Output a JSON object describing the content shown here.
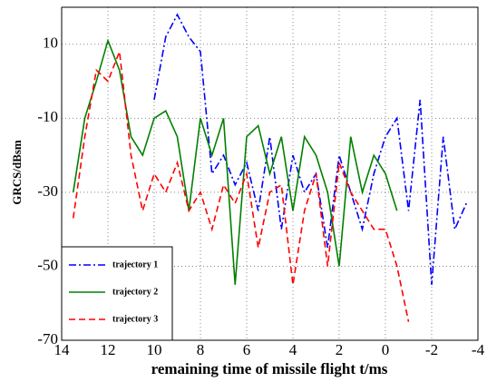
{
  "chart_data": {
    "type": "line",
    "x_label": "remaining time of missile flight t/ms",
    "y_label": "GRCS/dBsm",
    "x": [
      13.5,
      13,
      12.5,
      12,
      11.5,
      11,
      10.5,
      10,
      9.5,
      9,
      8.5,
      8,
      7.5,
      7,
      6.5,
      6,
      5.5,
      5,
      4.5,
      4,
      3.5,
      3,
      2.5,
      2,
      1.5,
      1,
      0.5,
      0,
      -0.5,
      -1,
      -1.5,
      -2,
      -2.5,
      -3,
      -3.5
    ],
    "series": [
      {
        "name": "trajectory 1",
        "color": "#0000ff",
        "style": "dashdot",
        "values": [
          null,
          null,
          null,
          null,
          null,
          null,
          null,
          -5,
          12,
          18,
          12,
          8,
          -25,
          -20,
          -28,
          -22,
          -35,
          -15,
          -40,
          -20,
          -30,
          -25,
          -45,
          -20,
          -30,
          -40,
          -25,
          -15,
          -10,
          -35,
          -5,
          -55,
          -15,
          -40,
          -33
        ]
      },
      {
        "name": "trajectory 2",
        "color": "#008000",
        "style": "solid",
        "values": [
          -30,
          -10,
          0,
          11,
          3,
          -15,
          -20,
          -10,
          -8,
          -15,
          -35,
          -10,
          -20,
          -10,
          -55,
          -15,
          -12,
          -25,
          -15,
          -35,
          -15,
          -20,
          -30,
          -50,
          -15,
          -30,
          -20,
          -25,
          -35,
          null,
          null,
          null,
          null,
          null,
          null
        ]
      },
      {
        "name": "trajectory 3",
        "color": "#ff0000",
        "style": "dashed",
        "values": [
          -37,
          -15,
          3,
          0,
          8,
          -20,
          -35,
          -25,
          -30,
          -22,
          -35,
          -30,
          -40,
          -28,
          -33,
          -25,
          -45,
          -30,
          -28,
          -55,
          -35,
          -25,
          -50,
          -22,
          -30,
          -35,
          -40,
          -40,
          -50,
          -65,
          null,
          null,
          null,
          null,
          null
        ]
      }
    ],
    "xlim": [
      14,
      -4
    ],
    "ylim": [
      -70,
      20
    ],
    "xticks": [
      14,
      12,
      10,
      8,
      6,
      4,
      2,
      0,
      -2,
      -4
    ],
    "yticks": [
      -70,
      -50,
      -30,
      -10,
      10
    ],
    "grid": true,
    "legend": "lower left"
  }
}
